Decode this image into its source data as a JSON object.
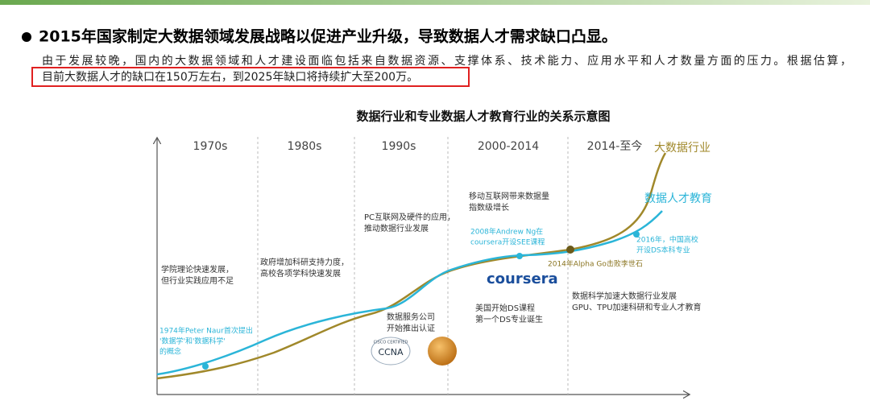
{
  "header": {
    "bullet_title": "2015年国家制定大数据领域发展战略以促进产业升级，导致数据人才需求缺口凸显。",
    "paragraph": [
      "由于发展较晚，国内的大数据领域和人才建设面临包括来自数据资源、支撑体系、技术能力、应用水平和人才数量方面的压力。根据估算，",
      "目前大数据人才的缺口在150万左右，到2025年缺口将持续扩大至200万。"
    ]
  },
  "diagram": {
    "title": "数据行业和专业数据人才教育行业的关系示意图",
    "eras": [
      "1970s",
      "1980s",
      "1990s",
      "2000-2014",
      "2014-至今"
    ],
    "curves": [
      "大数据行业",
      "数据人才教育"
    ],
    "annotations": [
      [
        "学院理论快速发展，",
        "但行业实践应用不足"
      ],
      [
        "政府增加科研支持力度，",
        "高校各项学科快速发展"
      ],
      [
        "PC互联网及硬件的应用，",
        "推动数据行业发展"
      ],
      [
        "移动互联网带来数据量",
        "指数级增长"
      ],
      [
        "2008年Andrew Ng在",
        "coursera开设SEE课程"
      ],
      [
        "2014年Alpha Go击败李世石"
      ],
      [
        "2016年，中国高校",
        "开设DS本科专业"
      ],
      [
        "1974年Peter Naur首次提出",
        "'数据学'和'数据科学'",
        "的概念"
      ],
      [
        "数据服务公司",
        "开始推出认证"
      ],
      [
        "美国开始DS课程",
        "第一个DS专业诞生"
      ],
      [
        "数据科学加速大数据行业发展",
        "GPU、TPU加速科研和专业人才教育"
      ]
    ],
    "logos": {
      "coursera": "coursera",
      "cisco": "CISCO CERTIFIED",
      "ccna": "CCNA"
    }
  }
}
